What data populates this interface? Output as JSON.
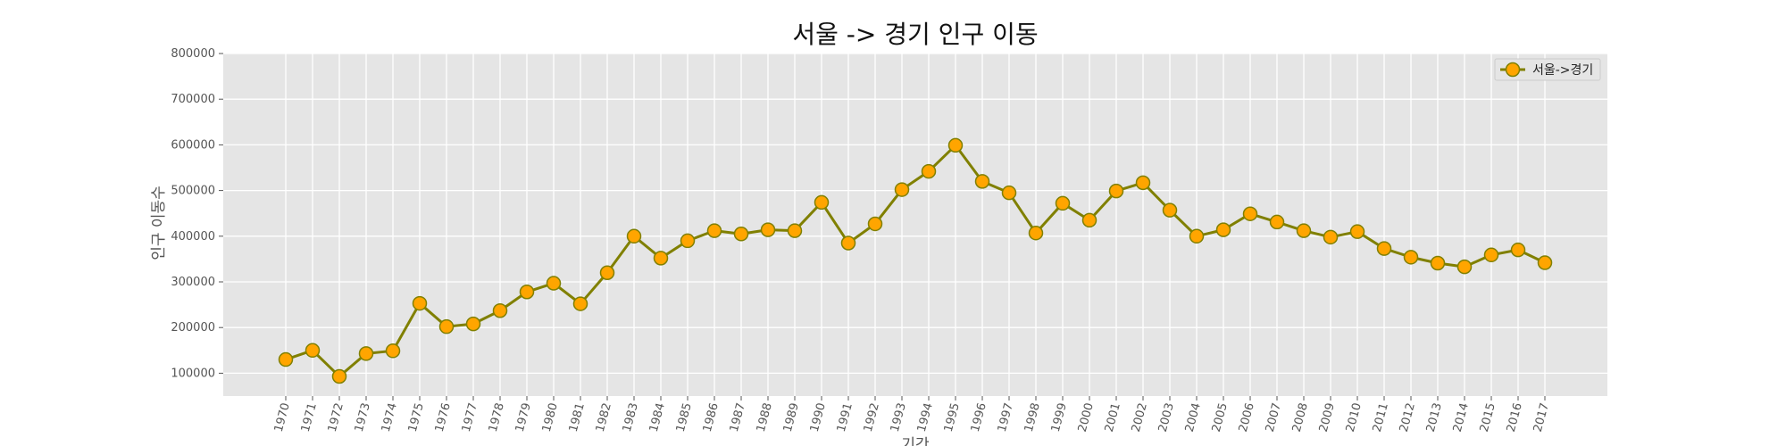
{
  "chart_data": {
    "type": "line",
    "title": "서울 -> 경기 인구 이동",
    "xlabel": "기간",
    "ylabel": "인구 이동수",
    "categories": [
      "1970",
      "1971",
      "1972",
      "1973",
      "1974",
      "1975",
      "1976",
      "1977",
      "1978",
      "1979",
      "1980",
      "1981",
      "1982",
      "1983",
      "1984",
      "1985",
      "1986",
      "1987",
      "1988",
      "1989",
      "1990",
      "1991",
      "1992",
      "1993",
      "1994",
      "1995",
      "1996",
      "1997",
      "1998",
      "1999",
      "2000",
      "2001",
      "2002",
      "2003",
      "2004",
      "2005",
      "2006",
      "2007",
      "2008",
      "2009",
      "2010",
      "2011",
      "2012",
      "2013",
      "2014",
      "2015",
      "2016",
      "2017"
    ],
    "series": [
      {
        "name": "서울->경기",
        "values": [
          130000,
          150000,
          93000,
          143000,
          149000,
          253000,
          202000,
          208000,
          237000,
          278000,
          297000,
          252000,
          320000,
          400000,
          352000,
          390000,
          412000,
          405000,
          414000,
          412000,
          474000,
          385000,
          427000,
          502000,
          542000,
          599000,
          520000,
          495000,
          407000,
          472000,
          435000,
          499000,
          517000,
          457000,
          400000,
          414000,
          449000,
          431000,
          412000,
          398000,
          410000,
          373000,
          354000,
          341000,
          333000,
          359000,
          370000,
          342000
        ]
      }
    ],
    "yticks": [
      "100000",
      "200000",
      "300000",
      "400000",
      "500000",
      "600000",
      "700000",
      "800000"
    ],
    "ylim": [
      50000,
      800000
    ],
    "grid": true,
    "legend_position": "top-right",
    "colors": {
      "plot_background": "#e5e5e5",
      "grid": "#ffffff",
      "line": "#808000",
      "marker_fill": "#ffa500",
      "text": "#555555",
      "title": "#111111"
    }
  }
}
